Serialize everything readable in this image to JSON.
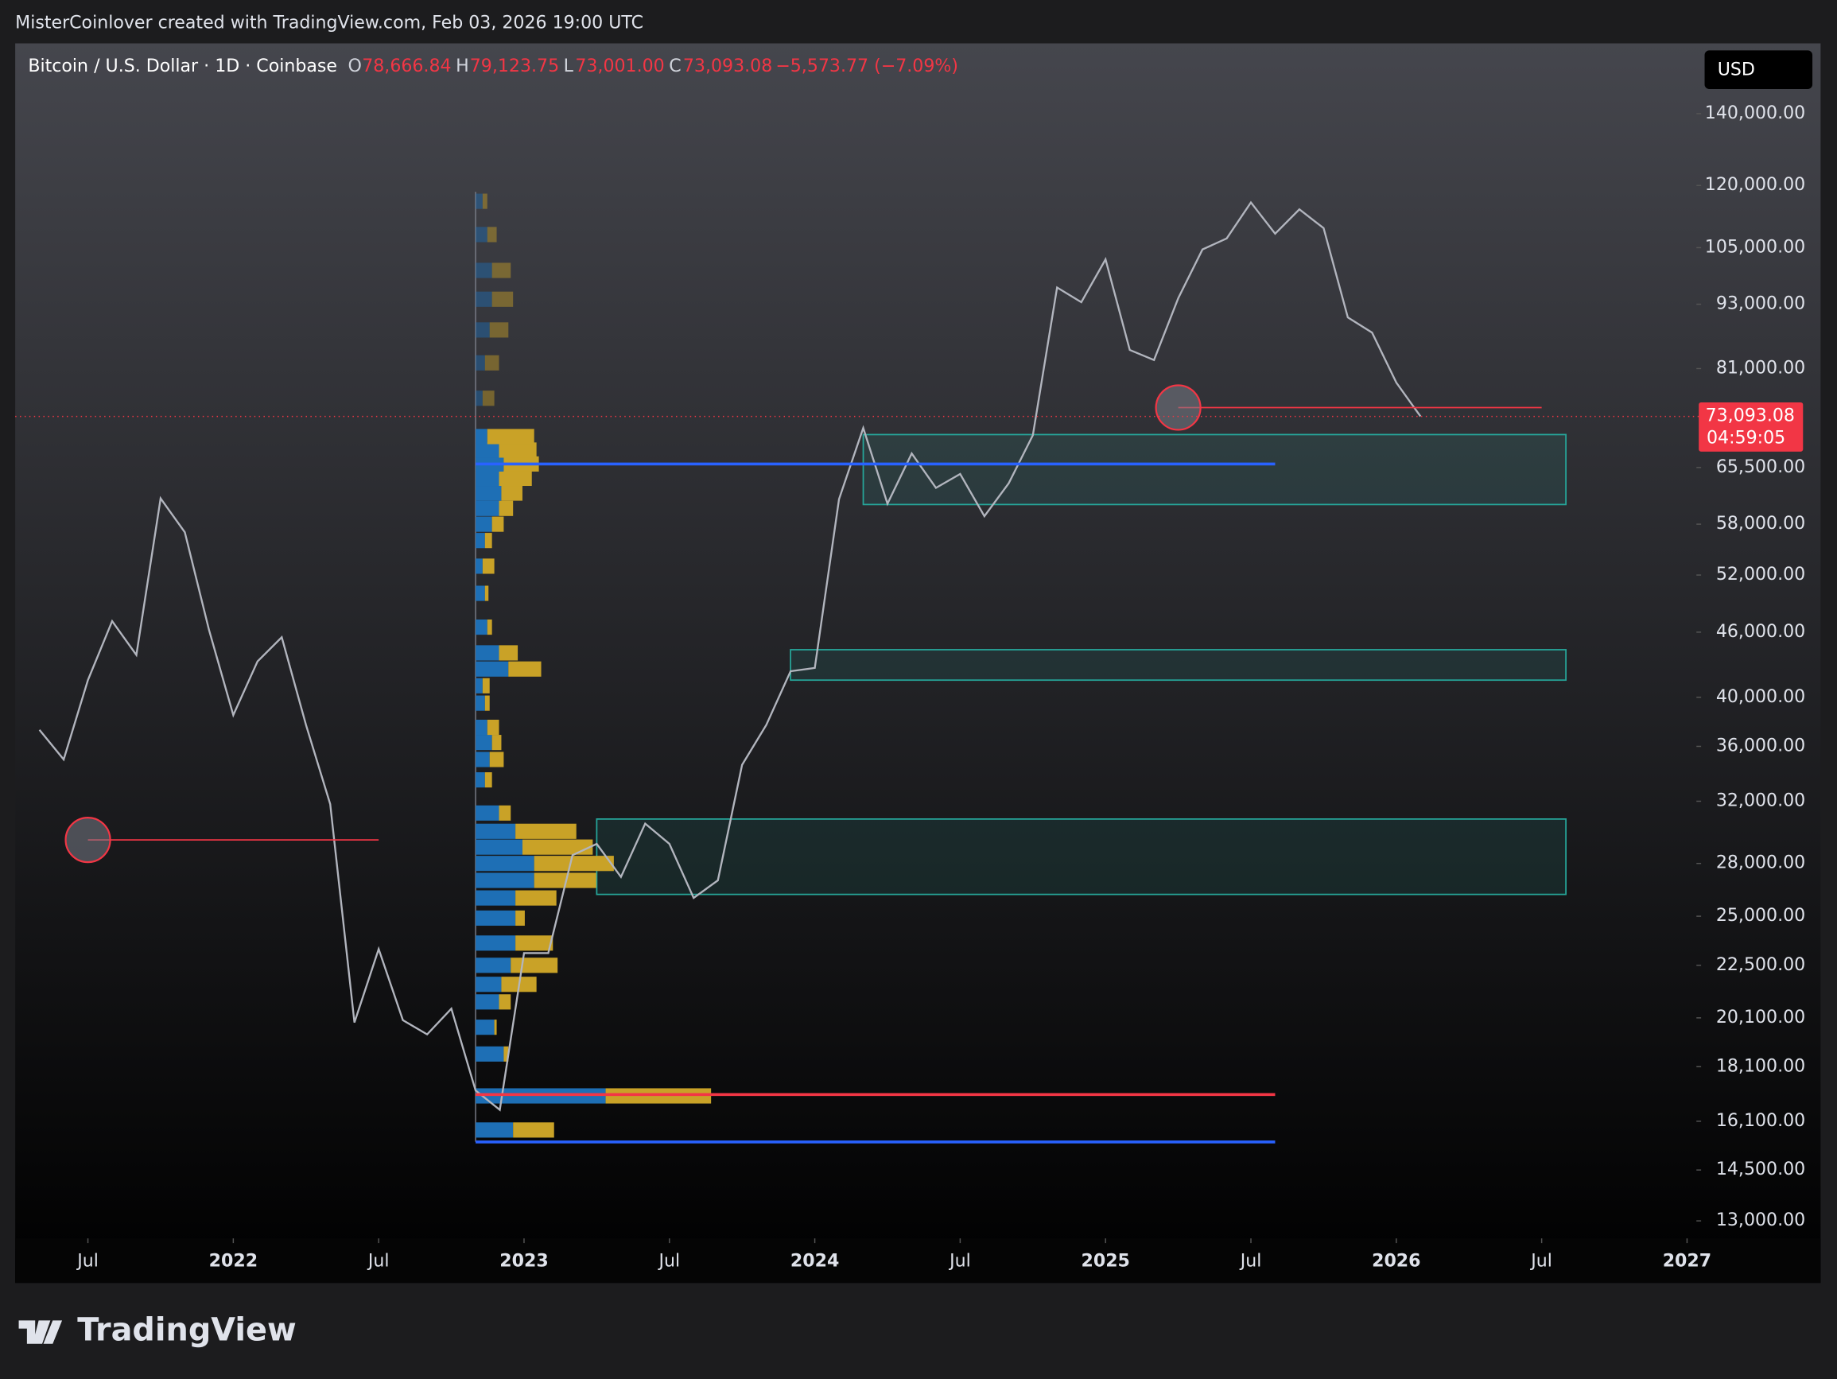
{
  "header": "MisterCoinlover created with TradingView.com, Feb 03, 2026 19:00 UTC",
  "brand": "TradingView",
  "chart_data": {
    "type": "line",
    "title": "Bitcoin / U.S. Dollar · 1D · Coinbase",
    "legend": {
      "open_label": "O",
      "open": "78,666.84",
      "high_label": "H",
      "high": "79,123.75",
      "low_label": "L",
      "low": "73,001.00",
      "close_label": "C",
      "close": "73,093.08",
      "change": "−5,573.77 (−7.09%)"
    },
    "currency": "USD",
    "last_price": {
      "value": 73093.08,
      "label": "73,093.08"
    },
    "countdown": "04:59:05",
    "log_scale": true,
    "xlim": [
      "2021-04",
      "2027-01"
    ],
    "ylim": [
      12520,
      162800
    ],
    "xticks": [
      {
        "value": "2021-07",
        "label": "Jul"
      },
      {
        "value": "2022-01",
        "label": "2022"
      },
      {
        "value": "2022-07",
        "label": "Jul"
      },
      {
        "value": "2023-01",
        "label": "2023"
      },
      {
        "value": "2023-07",
        "label": "Jul"
      },
      {
        "value": "2024-01",
        "label": "2024"
      },
      {
        "value": "2024-07",
        "label": "Jul"
      },
      {
        "value": "2025-01",
        "label": "2025"
      },
      {
        "value": "2025-07",
        "label": "Jul"
      },
      {
        "value": "2026-01",
        "label": "2026"
      },
      {
        "value": "2026-07",
        "label": "Jul"
      },
      {
        "value": "2027-01",
        "label": "2027"
      }
    ],
    "yticks": [
      {
        "value": 140000,
        "label": "140,000.00"
      },
      {
        "value": 120000,
        "label": "120,000.00"
      },
      {
        "value": 105000,
        "label": "105,000.00"
      },
      {
        "value": 93000,
        "label": "93,000.00"
      },
      {
        "value": 81000,
        "label": "81,000.00"
      },
      {
        "value": 65500,
        "label": "65,500.00"
      },
      {
        "value": 58000,
        "label": "58,000.00"
      },
      {
        "value": 52000,
        "label": "52,000.00"
      },
      {
        "value": 46000,
        "label": "46,000.00"
      },
      {
        "value": 40000,
        "label": "40,000.00"
      },
      {
        "value": 36000,
        "label": "36,000.00"
      },
      {
        "value": 32000,
        "label": "32,000.00"
      },
      {
        "value": 28000,
        "label": "28,000.00"
      },
      {
        "value": 25000,
        "label": "25,000.00"
      },
      {
        "value": 22500,
        "label": "22,500.00"
      },
      {
        "value": 20100,
        "label": "20,100.00"
      },
      {
        "value": 18100,
        "label": "18,100.00"
      },
      {
        "value": 16100,
        "label": "16,100.00"
      },
      {
        "value": 14500,
        "label": "14,500.00"
      },
      {
        "value": 13000,
        "label": "13,000.00"
      }
    ],
    "x": [
      "2021-05",
      "2021-06",
      "2021-07",
      "2021-08",
      "2021-09",
      "2021-10",
      "2021-11",
      "2021-12",
      "2022-01",
      "2022-02",
      "2022-03",
      "2022-04",
      "2022-05",
      "2022-06",
      "2022-07",
      "2022-08",
      "2022-09",
      "2022-10",
      "2022-11",
      "2022-12",
      "2023-01",
      "2023-02",
      "2023-03",
      "2023-04",
      "2023-05",
      "2023-06",
      "2023-07",
      "2023-08",
      "2023-09",
      "2023-10",
      "2023-11",
      "2023-12",
      "2024-01",
      "2024-02",
      "2024-03",
      "2024-04",
      "2024-05",
      "2024-06",
      "2024-07",
      "2024-08",
      "2024-09",
      "2024-10",
      "2024-11",
      "2024-12",
      "2025-01",
      "2025-02",
      "2025-03",
      "2025-04",
      "2025-05",
      "2025-06",
      "2025-07",
      "2025-08",
      "2025-09",
      "2025-10",
      "2025-11",
      "2025-12",
      "2026-01",
      "2026-02"
    ],
    "series": [
      {
        "name": "BTCUSD",
        "color": "#b2b5be",
        "values": [
          37300,
          35000,
          41500,
          47100,
          43800,
          61300,
          57000,
          46200,
          38500,
          43200,
          45500,
          37700,
          31800,
          19900,
          23300,
          20000,
          19400,
          20500,
          17200,
          16500,
          23100,
          23100,
          28500,
          29200,
          27200,
          30500,
          29200,
          26000,
          27000,
          34600,
          37700,
          42300,
          42600,
          61200,
          71300,
          60600,
          67500,
          62700,
          64600,
          59000,
          63300,
          70200,
          96400,
          93400,
          102400,
          84300,
          82500,
          94200,
          104600,
          107100,
          115700,
          108200,
          114000,
          109500,
          90400,
          87500,
          78600,
          73093.08
        ]
      }
    ],
    "zones": [
      {
        "start": "2024-03",
        "end": "2026-08",
        "low": 60500,
        "high": 70300
      },
      {
        "start": "2023-12",
        "end": "2026-08",
        "low": 41500,
        "high": 44300
      },
      {
        "start": "2023-04",
        "end": "2026-08",
        "low": 26200,
        "high": 30800
      }
    ],
    "levels": [
      {
        "start": "2022-11",
        "end": "2025-08",
        "price": 66000,
        "color": "#2962ff"
      },
      {
        "start": "2022-11",
        "end": "2025-08",
        "price": 17050,
        "color": "#f23645"
      },
      {
        "start": "2022-11",
        "end": "2025-08",
        "price": 15400,
        "color": "#2962ff"
      },
      {
        "start": "2021-07",
        "end": "2022-07",
        "price": 29450,
        "color": "#f23645"
      },
      {
        "start": "2025-04",
        "end": "2026-07",
        "price": 74500,
        "color": "#f23645"
      }
    ],
    "markers": [
      {
        "x": "2021-07",
        "price": 29450
      },
      {
        "x": "2025-04",
        "price": 74500
      }
    ],
    "volume_profile": {
      "anchor": "2022-11",
      "up_color": "#1e6fb5",
      "down_color": "#c9a227",
      "prices": [
        15800,
        17000,
        18600,
        19700,
        20800,
        21600,
        22500,
        23600,
        24900,
        26000,
        27000,
        28000,
        29000,
        30000,
        31200,
        33500,
        35000,
        36300,
        37500,
        39500,
        41000,
        42500,
        44000,
        46500,
        50000,
        53000,
        56000,
        58000,
        60000,
        62000,
        64000,
        66000,
        68000,
        70000,
        76000,
        82000,
        88000,
        94000,
        100000,
        108000,
        116000
      ],
      "up": [
        32,
        111,
        24,
        16,
        20,
        22,
        30,
        34,
        34,
        34,
        50,
        50,
        40,
        34,
        20,
        8,
        12,
        14,
        10,
        8,
        6,
        28,
        20,
        10,
        8,
        6,
        8,
        14,
        20,
        22,
        20,
        24,
        20,
        10,
        6,
        8,
        12,
        14,
        14,
        10,
        6
      ],
      "down": [
        35,
        90,
        4,
        2,
        10,
        30,
        40,
        32,
        8,
        35,
        53,
        68,
        60,
        52,
        10,
        6,
        12,
        8,
        10,
        4,
        6,
        28,
        16,
        4,
        3,
        10,
        6,
        10,
        12,
        18,
        28,
        30,
        32,
        40,
        10,
        12,
        16,
        18,
        16,
        8,
        4
      ]
    }
  }
}
